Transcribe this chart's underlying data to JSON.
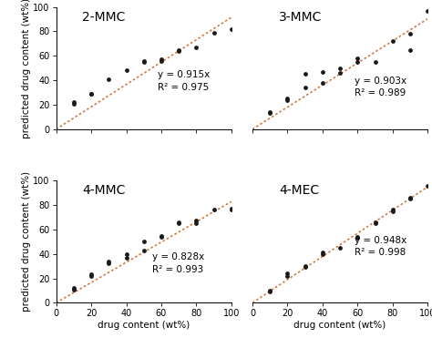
{
  "panels": [
    {
      "title": "2-MMC",
      "equation": "y = 0.915x",
      "r2": "R² = 0.975",
      "slope": 0.915,
      "x_data": [
        10,
        10,
        20,
        20,
        30,
        40,
        50,
        50,
        60,
        60,
        70,
        70,
        80,
        90,
        100
      ],
      "y_data": [
        21,
        22,
        29,
        29,
        41,
        48,
        55,
        56,
        56,
        57,
        64,
        65,
        67,
        79,
        82
      ],
      "eq_pos_x": 58,
      "eq_pos_y": 48,
      "eq_ha": "left"
    },
    {
      "title": "3-MMC",
      "equation": "y = 0.903x",
      "r2": "R² = 0.989",
      "slope": 0.903,
      "x_data": [
        10,
        10,
        20,
        20,
        30,
        30,
        40,
        40,
        50,
        50,
        60,
        60,
        70,
        80,
        90,
        90,
        100
      ],
      "y_data": [
        13,
        14,
        24,
        25,
        34,
        45,
        38,
        47,
        46,
        50,
        55,
        58,
        55,
        72,
        65,
        78,
        97
      ],
      "eq_pos_x": 58,
      "eq_pos_y": 43,
      "eq_ha": "left"
    },
    {
      "title": "4-MMC",
      "equation": "y = 0.828x",
      "r2": "R² = 0.993",
      "slope": 0.828,
      "x_data": [
        10,
        10,
        20,
        20,
        30,
        30,
        40,
        40,
        50,
        50,
        60,
        60,
        70,
        70,
        80,
        80,
        90,
        100,
        100
      ],
      "y_data": [
        11,
        12,
        22,
        23,
        32,
        34,
        37,
        40,
        43,
        50,
        54,
        55,
        65,
        66,
        65,
        67,
        76,
        76,
        77
      ],
      "eq_pos_x": 55,
      "eq_pos_y": 41,
      "eq_ha": "left"
    },
    {
      "title": "4-MEC",
      "equation": "y = 0.948x",
      "r2": "R² = 0.998",
      "slope": 0.948,
      "x_data": [
        10,
        10,
        20,
        20,
        30,
        30,
        40,
        40,
        50,
        60,
        60,
        70,
        70,
        80,
        80,
        90,
        90,
        100
      ],
      "y_data": [
        9,
        10,
        22,
        24,
        29,
        30,
        40,
        41,
        45,
        53,
        54,
        65,
        66,
        75,
        76,
        85,
        86,
        96
      ],
      "eq_pos_x": 58,
      "eq_pos_y": 55,
      "eq_ha": "left"
    }
  ],
  "xlim": [
    0,
    100
  ],
  "ylim": [
    0,
    100
  ],
  "xticks": [
    0,
    20,
    40,
    60,
    80,
    100
  ],
  "yticks": [
    0,
    20,
    40,
    60,
    80,
    100
  ],
  "dot_color": "#1a1a1a",
  "dot_size": 12,
  "line_color": "#d47840",
  "line_width": 1.2,
  "xlabel": "drug content (wt%)",
  "ylabel": "predicted drug content (wt%)",
  "bg_color": "#ffffff",
  "title_fontsize": 10,
  "label_fontsize": 7.5,
  "tick_fontsize": 7,
  "eq_fontsize": 7.5
}
